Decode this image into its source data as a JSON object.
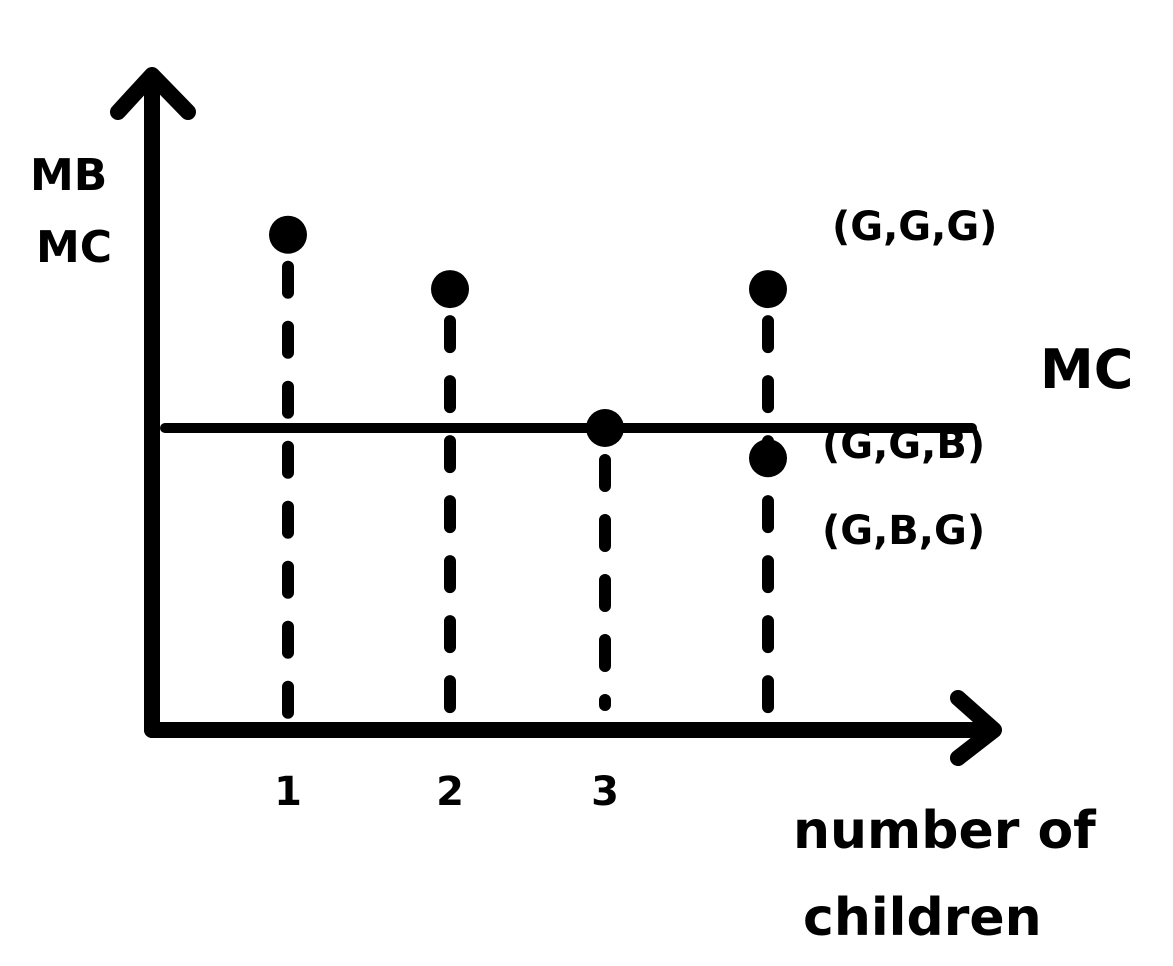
{
  "chart_data": {
    "type": "scatter",
    "ylabel_lines": [
      "MB",
      "MC"
    ],
    "xlabel_lines": [
      "number of",
      "children"
    ],
    "x_ticks": [
      "1",
      "2",
      "3",
      ""
    ],
    "mc_line": {
      "label": "MC",
      "value": 0.5
    },
    "ylim": [
      0,
      1
    ],
    "grid": false,
    "points": [
      {
        "x": 1,
        "y": 0.82
      },
      {
        "x": 2,
        "y": 0.73
      },
      {
        "x": 3,
        "y": 0.5
      },
      {
        "x": 4,
        "y": 0.73
      },
      {
        "x": 4,
        "y": 0.45
      }
    ],
    "annotations": [
      {
        "text": "(G,G,G)",
        "x": 4,
        "y": 0.73
      },
      {
        "text": "(G,G,B)",
        "x": 4,
        "y": 0.45
      },
      {
        "text": "(G,B,G)",
        "x": 4,
        "y": 0.45
      }
    ],
    "colors": {
      "ink": "#000000",
      "background": "#ffffff"
    }
  }
}
